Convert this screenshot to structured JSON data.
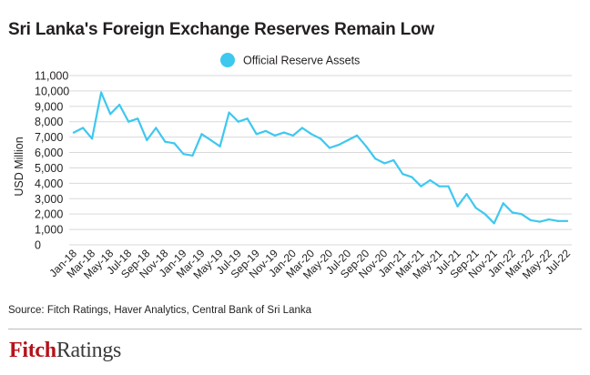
{
  "title": "Sri Lanka's Foreign Exchange Reserves Remain Low",
  "source": "Source: Fitch Ratings, Haver Analytics, Central Bank of Sri Lanka",
  "logo": {
    "part1": "Fitch",
    "part2": "Ratings"
  },
  "colors": {
    "series": "#3ec8ef",
    "grid": "#d9d9d9",
    "text": "#231f20",
    "brand": "#b5121b"
  },
  "chart_data": {
    "type": "line",
    "title": "Sri Lanka's Foreign Exchange Reserves Remain Low",
    "xlabel": "",
    "ylabel": "USD Million",
    "ylim": [
      0,
      11000
    ],
    "yticks": [
      0,
      1000,
      2000,
      3000,
      4000,
      5000,
      6000,
      7000,
      8000,
      9000,
      10000,
      11000
    ],
    "ytick_labels": [
      "0",
      "1,000",
      "2,000",
      "3,000",
      "4,000",
      "5,000",
      "6,000",
      "7,000",
      "8,000",
      "9,000",
      "10,000",
      "11,000"
    ],
    "grid": true,
    "legend_position": "top-center",
    "categories": [
      "Jan-18",
      "Feb-18",
      "Mar-18",
      "Apr-18",
      "May-18",
      "Jun-18",
      "Jul-18",
      "Aug-18",
      "Sep-18",
      "Oct-18",
      "Nov-18",
      "Dec-18",
      "Jan-19",
      "Feb-19",
      "Mar-19",
      "Apr-19",
      "May-19",
      "Jun-19",
      "Jul-19",
      "Aug-19",
      "Sep-19",
      "Oct-19",
      "Nov-19",
      "Dec-19",
      "Jan-20",
      "Feb-20",
      "Mar-20",
      "Apr-20",
      "May-20",
      "Jun-20",
      "Jul-20",
      "Aug-20",
      "Sep-20",
      "Oct-20",
      "Nov-20",
      "Dec-20",
      "Jan-21",
      "Feb-21",
      "Mar-21",
      "Apr-21",
      "May-21",
      "Jun-21",
      "Jul-21",
      "Aug-21",
      "Sep-21",
      "Oct-21",
      "Nov-21",
      "Dec-21",
      "Jan-22",
      "Feb-22",
      "Mar-22",
      "Apr-22",
      "May-22",
      "Jun-22",
      "Jul-22"
    ],
    "tick_labels": [
      "Jan-18",
      "Mar-18",
      "May-18",
      "Jul-18",
      "Sep-18",
      "Nov-18",
      "Jan-19",
      "Mar-19",
      "May-19",
      "Jul-19",
      "Sep-19",
      "Nov-19",
      "Jan-20",
      "Mar-20",
      "May-20",
      "Jul-20",
      "Sep-20",
      "Nov-20",
      "Jan-21",
      "Mar-21",
      "May-21",
      "Jul-21",
      "Sep-21",
      "Nov-21",
      "Jan-22",
      "Mar-22",
      "May-22",
      "Jul-22"
    ],
    "series": [
      {
        "name": "Official Reserve Assets",
        "values": [
          7300,
          7600,
          6900,
          9900,
          8500,
          9100,
          8000,
          8200,
          6800,
          7600,
          6700,
          6600,
          5900,
          5800,
          7200,
          6800,
          6400,
          8600,
          8000,
          8200,
          7200,
          7400,
          7100,
          7300,
          7100,
          7600,
          7200,
          6900,
          6300,
          6500,
          6800,
          7100,
          6400,
          5600,
          5300,
          5500,
          4600,
          4400,
          3800,
          4200,
          3800,
          3800,
          2500,
          3300,
          2400,
          2000,
          1400,
          2700,
          2100,
          2000,
          1600,
          1500,
          1650,
          1550,
          1550
        ]
      }
    ]
  }
}
